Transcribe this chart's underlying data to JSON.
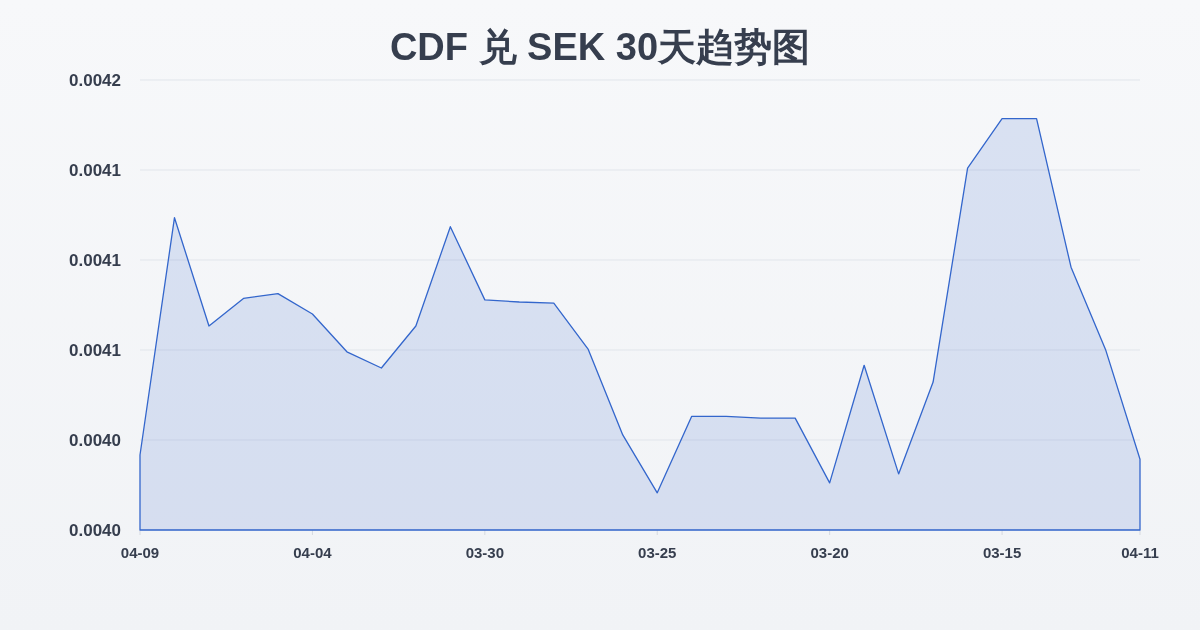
{
  "chart_data": {
    "type": "area",
    "title": "CDF 兑 SEK 30天趋势图",
    "categories": [
      "04-09",
      null,
      null,
      null,
      null,
      "04-04",
      null,
      null,
      null,
      null,
      "03-30",
      null,
      null,
      null,
      null,
      "03-25",
      null,
      null,
      null,
      null,
      "03-20",
      null,
      null,
      null,
      null,
      "03-15",
      null,
      null,
      null,
      "04-11"
    ],
    "series": [
      {
        "color": "#3366cc",
        "values": [
          0.004025,
          0.0041041,
          0.004068,
          0.0040772,
          0.0040788,
          0.004072,
          0.0040594,
          0.004054,
          0.004068,
          0.0041011,
          0.0040767,
          0.004076,
          0.0040756,
          0.0040602,
          0.0040317,
          0.0040124,
          0.0040379,
          0.0040379,
          0.0040373,
          0.0040373,
          0.0040157,
          0.0040549,
          0.0040187,
          0.0040493,
          0.0041206,
          0.0041371,
          0.0041371,
          0.0040876,
          0.0040602,
          0.0040236
        ]
      }
    ],
    "ylim": [
      0.004,
      0.00415
    ],
    "yticks": [
      {
        "value": 0.004,
        "label": "0.0040"
      },
      {
        "value": 0.00403,
        "label": "0.0040"
      },
      {
        "value": 0.00406,
        "label": "0.0041"
      },
      {
        "value": 0.00409,
        "label": "0.0041"
      },
      {
        "value": 0.00412,
        "label": "0.0041"
      },
      {
        "value": 0.00415,
        "label": "0.0042"
      }
    ],
    "grid": "y"
  }
}
